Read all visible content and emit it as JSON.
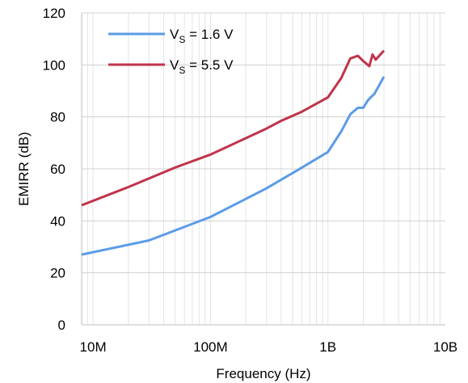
{
  "chart_data": {
    "type": "line",
    "xlabel": "Frequency (Hz)",
    "ylabel": "EMIRR (dB)",
    "x_scale": "log",
    "xlim": [
      8000000,
      10000000000
    ],
    "ylim": [
      0,
      120
    ],
    "x_ticks": [
      {
        "value": 10000000,
        "label": "10M"
      },
      {
        "value": 100000000,
        "label": "100M"
      },
      {
        "value": 1000000000,
        "label": "1B"
      },
      {
        "value": 10000000000,
        "label": "10B"
      }
    ],
    "y_ticks": [
      {
        "value": 0,
        "label": "0"
      },
      {
        "value": 20,
        "label": "20"
      },
      {
        "value": 40,
        "label": "40"
      },
      {
        "value": 60,
        "label": "60"
      },
      {
        "value": 80,
        "label": "80"
      },
      {
        "value": 100,
        "label": "100"
      },
      {
        "value": 120,
        "label": "120"
      }
    ],
    "grid": {
      "horizontal": true,
      "vertical_minor": true
    },
    "legend_position": "top-left",
    "series": [
      {
        "name_main": "V",
        "name_sub": "S",
        "name_rest": " = 1.6 V",
        "color": "#5B9BE6",
        "x": [
          8000000,
          30000000,
          100000000,
          300000000,
          600000000,
          1000000000,
          1300000000,
          1550000000,
          1800000000,
          2000000000,
          2200000000,
          2500000000,
          3000000000
        ],
        "y": [
          27,
          32.5,
          41.5,
          52.5,
          60.5,
          66.5,
          74.5,
          81,
          83.5,
          83.5,
          86.5,
          89,
          95.5
        ]
      },
      {
        "name_main": "V",
        "name_sub": "S",
        "name_rest": " = 5.5 V",
        "color": "#C0334A",
        "x": [
          8000000,
          20000000,
          50000000,
          100000000,
          300000000,
          400000000,
          600000000,
          1000000000,
          1300000000,
          1550000000,
          1800000000,
          2000000000,
          2250000000,
          2400000000,
          2550000000,
          3000000000
        ],
        "y": [
          46,
          53,
          60.5,
          65.5,
          75.5,
          78.5,
          82,
          87.5,
          95,
          102.5,
          103.5,
          101.5,
          99.5,
          104,
          102,
          105.5
        ]
      }
    ]
  }
}
